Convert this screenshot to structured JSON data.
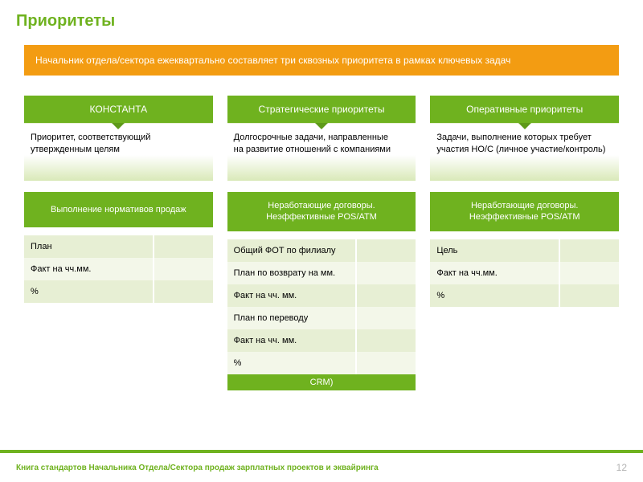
{
  "colors": {
    "accent": "#6fb21f",
    "accent_dark": "#5e9a19",
    "banner": "#f39c12",
    "row_a": "#e7efd4",
    "row_b": "#f3f7e9",
    "title": "#6fb21f",
    "footer_text": "#6fb21f",
    "page_num": "#b4b4b4"
  },
  "title": "Приоритеты",
  "banner": "Начальник отдела/сектора ежеквартально составляет три сквозных приоритета в рамках ключевых задач",
  "columns": [
    {
      "header": "КОНСТАНТА",
      "desc": "Приоритет, соответствующий утвержденным целям",
      "sub": "Выполнение нормативов продаж",
      "rows": [
        {
          "label": "План",
          "value": ""
        },
        {
          "label": "Факт на чч.мм.",
          "value": ""
        },
        {
          "label": "%",
          "value": ""
        }
      ]
    },
    {
      "header": "Стратегические приоритеты",
      "desc": "Долгосрочные задачи, направленные\nна развитие отношений с компаниями",
      "sub": "Неработающие  договоры.\nНеэффективные POS/ATM",
      "rows": [
        {
          "label": "Общий ФОТ по филиалу",
          "value": ""
        },
        {
          "label": "План по возврату на мм.",
          "value": ""
        },
        {
          "label": "Факт на чч. мм.",
          "value": ""
        },
        {
          "label": "План по переводу",
          "value": ""
        },
        {
          "label": "Факт на чч. мм.",
          "value": ""
        },
        {
          "label": "%",
          "value": ""
        }
      ],
      "crm": "CRM)"
    },
    {
      "header": "Оперативные приоритеты",
      "desc": "Задачи, выполнение которых требует участия НО/С (личное участие/контроль)",
      "sub": "Неработающие договоры.\nНеэффективные POS/ATM",
      "rows": [
        {
          "label": "Цель",
          "value": ""
        },
        {
          "label": "Факт на чч.мм.",
          "value": ""
        },
        {
          "label": "%",
          "value": ""
        }
      ]
    }
  ],
  "footer": {
    "left": "Книга стандартов  Начальника Отдела/Сектора  продаж зарплатных проектов и эквайринга",
    "page": "12"
  }
}
